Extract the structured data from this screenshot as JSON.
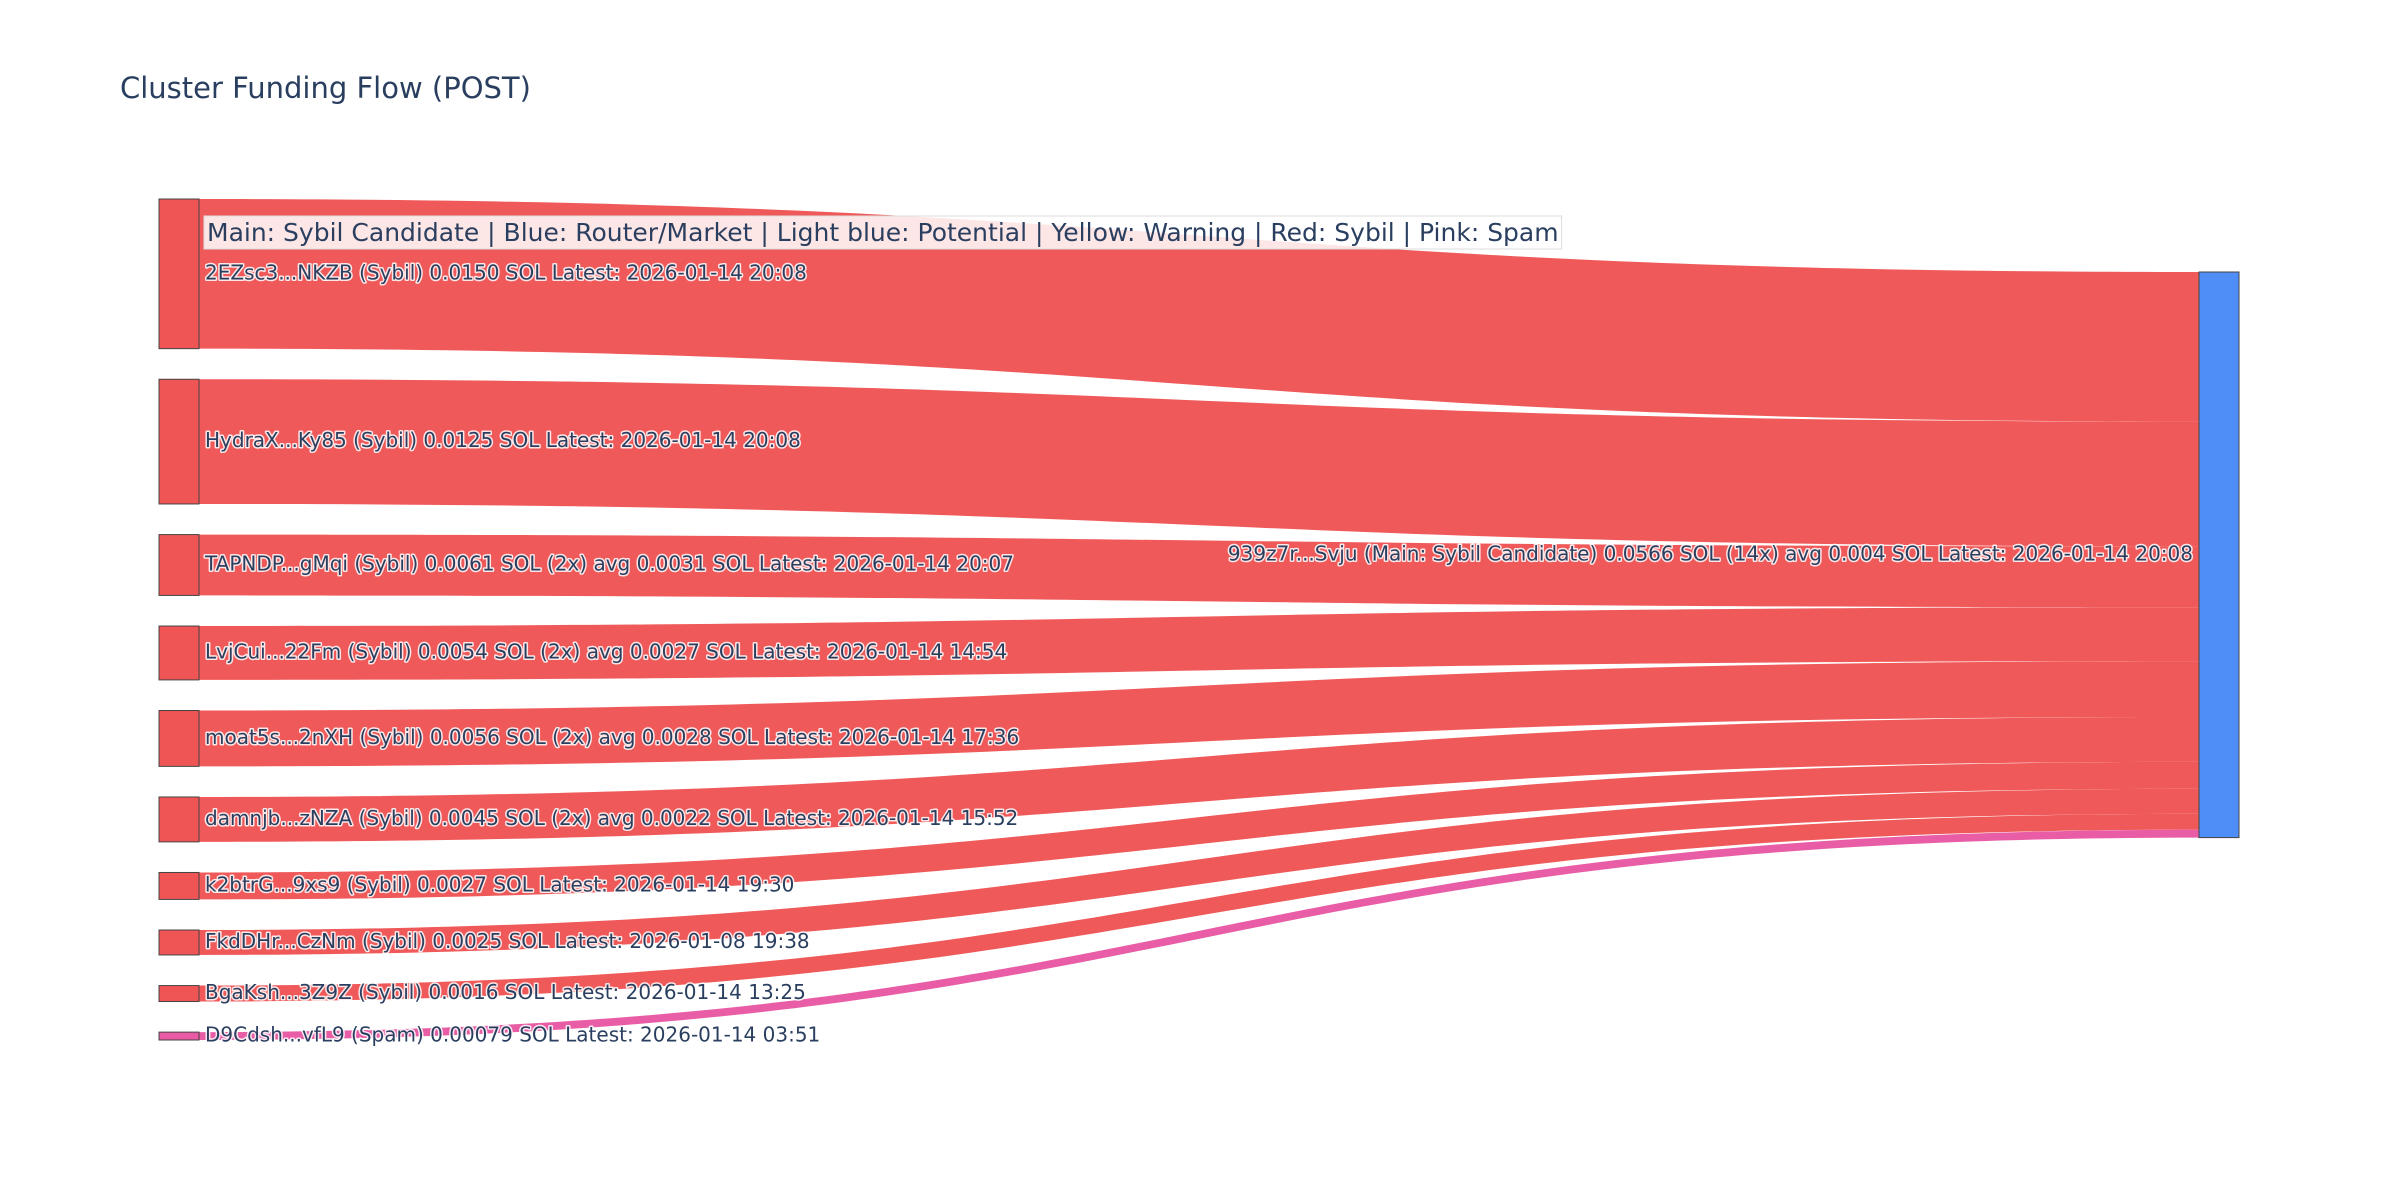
{
  "chart_data": {
    "type": "sankey",
    "title": "Cluster Funding Flow (POST)",
    "annotation": "Main: Sybil Candidate  |  Blue: Router/Market | Light blue: Potential | Yellow: Warning | Red: Sybil | Pink: Spam",
    "nodes": [
      {
        "label": "2EZsc3...NKZB (Sybil) 0.0150 SOL Latest: 2026-01-14 20:08",
        "color": "#ef5555"
      },
      {
        "label": "HydraX...Ky85 (Sybil) 0.0125 SOL Latest: 2026-01-14 20:08",
        "color": "#ef5555"
      },
      {
        "label": "TAPNDP...gMqi (Sybil) 0.0061 SOL (2x) avg 0.0031 SOL Latest: 2026-01-14 20:07",
        "color": "#ef5555"
      },
      {
        "label": "LvjCui...22Fm (Sybil) 0.0054 SOL (2x) avg 0.0027 SOL Latest: 2026-01-14 14:54",
        "color": "#ef5555"
      },
      {
        "label": "moat5s...2nXH (Sybil) 0.0056 SOL (2x) avg 0.0028 SOL Latest: 2026-01-14 17:36",
        "color": "#ef5555"
      },
      {
        "label": "damnjb...zNZA (Sybil) 0.0045 SOL (2x) avg 0.0022 SOL Latest: 2026-01-14 15:52",
        "color": "#ef5555"
      },
      {
        "label": "k2btrG...9xs9 (Sybil) 0.0027 SOL Latest: 2026-01-14 19:30",
        "color": "#ef5555"
      },
      {
        "label": "FkdDHr...CzNm (Sybil) 0.0025 SOL Latest: 2026-01-08 19:38",
        "color": "#ef5555"
      },
      {
        "label": "BgaKsh...3Z9Z (Sybil) 0.0016 SOL Latest: 2026-01-14 13:25",
        "color": "#ef5555"
      },
      {
        "label": "D9Cdsh...vfL9 (Spam) 0.00079 SOL Latest: 2026-01-14 03:51",
        "color": "#e85aa3"
      },
      {
        "label": "939z7r...Svju (Main: Sybil Candidate) 0.0566 SOL (14x) avg 0.004 SOL Latest: 2026-01-14 20:08",
        "color": "#4f8ef7"
      }
    ],
    "links": [
      {
        "source": 0,
        "target": 10,
        "value": 0.015,
        "color": "#f05656"
      },
      {
        "source": 1,
        "target": 10,
        "value": 0.0125,
        "color": "#f05656"
      },
      {
        "source": 2,
        "target": 10,
        "value": 0.0061,
        "color": "#f05656"
      },
      {
        "source": 3,
        "target": 10,
        "value": 0.0054,
        "color": "#f05656"
      },
      {
        "source": 4,
        "target": 10,
        "value": 0.0056,
        "color": "#f05656"
      },
      {
        "source": 5,
        "target": 10,
        "value": 0.0045,
        "color": "#f05656"
      },
      {
        "source": 6,
        "target": 10,
        "value": 0.0027,
        "color": "#f05656"
      },
      {
        "source": 7,
        "target": 10,
        "value": 0.0025,
        "color": "#f05656"
      },
      {
        "source": 8,
        "target": 10,
        "value": 0.0016,
        "color": "#f05656"
      },
      {
        "source": 9,
        "target": 10,
        "value": 0.00079,
        "color": "#e85aa3"
      }
    ]
  }
}
